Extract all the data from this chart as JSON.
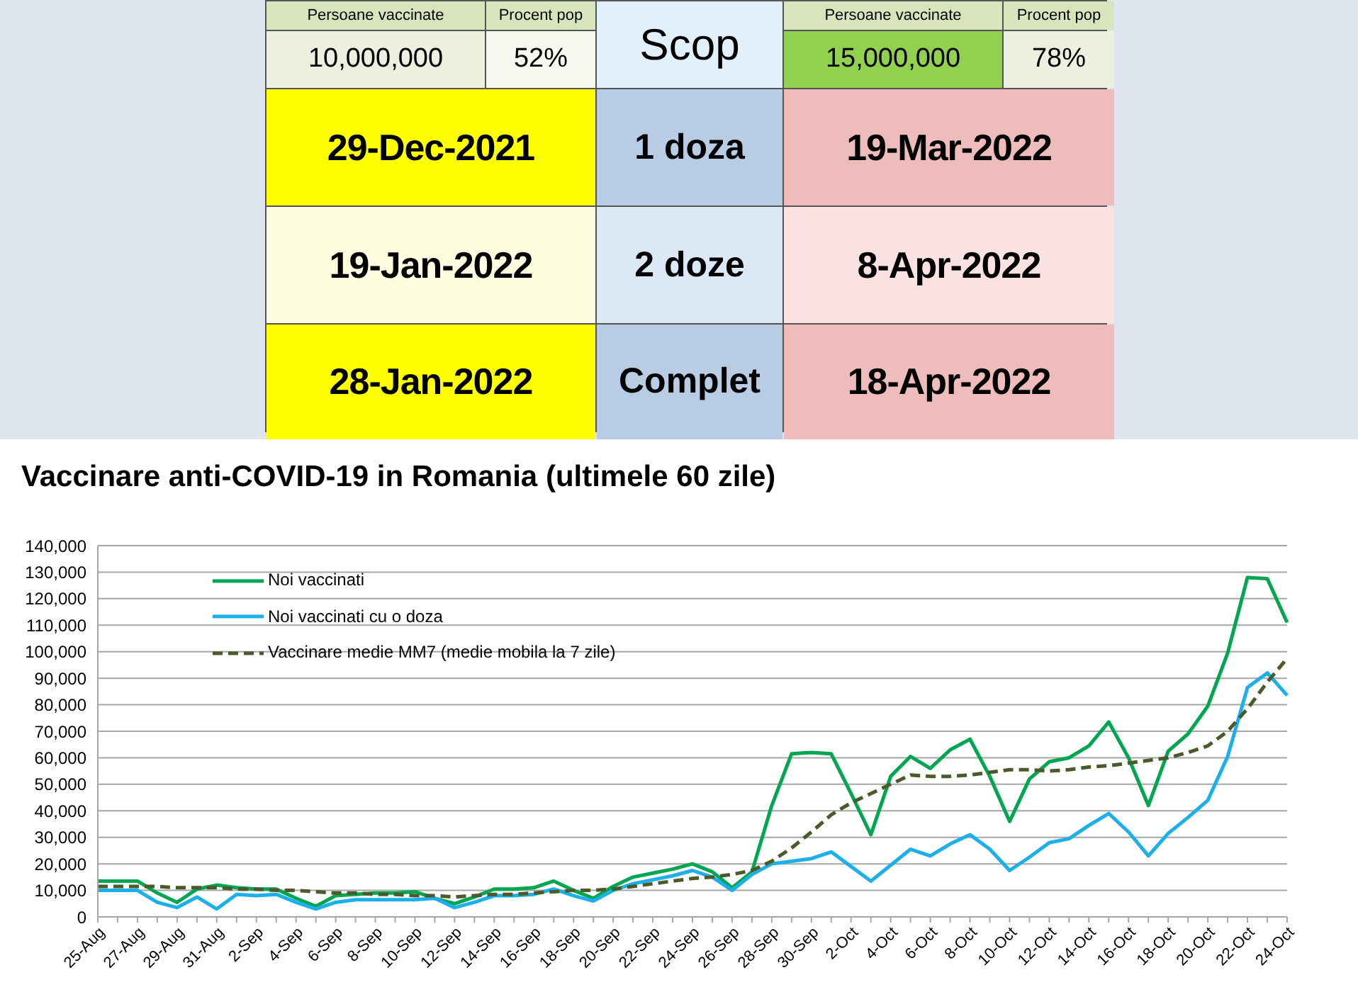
{
  "chart_data": [
    {
      "type": "other",
      "annotations": [
        "Persoane vaccinate",
        "Procent pop",
        "Scop",
        "Persoane vaccinate",
        "Procent pop",
        "10,000,000",
        "52%",
        "15,000,000",
        "78%",
        "29-Dec-2021",
        "1 doza",
        "19-Mar-2022",
        "19-Jan-2022",
        "2 doze",
        "8-Apr-2022",
        "28-Jan-2022",
        "Complet",
        "18-Apr-2022"
      ],
      "colors": [
        "#d8e4bc",
        "#d8e4bc",
        "#e1f0fa",
        "#d8e4bc",
        "#d8e4bc",
        "#ebf1de",
        "#f6f9ef",
        "#92d050",
        "#ebf1de",
        "#ffff00",
        "#b8cce4",
        "#efbcbc",
        "#fffde0",
        "#dce8f6",
        "#fbe2e2",
        "#ffff00",
        "#b8cce4",
        "#efbcbc"
      ]
    },
    {
      "type": "line",
      "title": "Vaccinare anti-COVID-19 in Romania (ultimele 60 zile)",
      "categories": [
        "25-Aug",
        null,
        "27-Aug",
        null,
        "29-Aug",
        null,
        "31-Aug",
        null,
        "2-Sep",
        null,
        "4-Sep",
        null,
        "6-Sep",
        null,
        "8-Sep",
        null,
        "10-Sep",
        null,
        "12-Sep",
        null,
        "14-Sep",
        null,
        "16-Sep",
        null,
        "18-Sep",
        null,
        "20-Sep",
        null,
        "22-Sep",
        null,
        "24-Sep",
        null,
        "26-Sep",
        null,
        "28-Sep",
        null,
        "30-Sep",
        null,
        "2-Oct",
        null,
        "4-Oct",
        null,
        "6-Oct",
        null,
        "8-Oct",
        null,
        "10-Oct",
        null,
        "12-Oct",
        null,
        "14-Oct",
        null,
        "16-Oct",
        null,
        "18-Oct",
        null,
        "20-Oct",
        null,
        "22-Oct",
        null,
        "24-Oct"
      ],
      "series": [
        {
          "name": "Noi vaccinati",
          "color": "#00a650",
          "line_style": "solid",
          "values": [
            13500,
            13500,
            13500,
            9000,
            5500,
            10500,
            12000,
            11000,
            10500,
            10500,
            7000,
            4000,
            8000,
            8500,
            9000,
            9000,
            9500,
            7000,
            5000,
            7500,
            10500,
            10500,
            11000,
            13500,
            10000,
            7000,
            11500,
            15000,
            16500,
            18000,
            20000,
            17000,
            11000,
            17000,
            42000,
            61500,
            62000,
            61500,
            46500,
            31000,
            53000,
            60500,
            56000,
            63000,
            67000,
            53000,
            36000,
            52000,
            58500,
            60000,
            64500,
            73500,
            60000,
            42000,
            62500,
            69000,
            79500,
            99500,
            128000,
            127500,
            111000
          ]
        },
        {
          "name": "Noi vaccinati cu o doza",
          "color": "#1cb0ea",
          "line_style": "solid",
          "values": [
            10000,
            10000,
            10000,
            5500,
            3500,
            7500,
            3000,
            8500,
            8000,
            8500,
            5500,
            3000,
            5500,
            6500,
            6500,
            6500,
            6500,
            7000,
            3500,
            5500,
            8000,
            8000,
            8500,
            10500,
            8000,
            6000,
            10000,
            12500,
            14000,
            15500,
            17500,
            15000,
            10000,
            16000,
            20000,
            21000,
            22000,
            24500,
            19000,
            13500,
            19500,
            25500,
            23000,
            27500,
            31000,
            25500,
            17500,
            22500,
            28000,
            29500,
            34500,
            39000,
            32000,
            23000,
            31500,
            37500,
            44000,
            60500,
            86500,
            92000,
            83500
          ]
        },
        {
          "name": "Vaccinare medie MM7 (medie mobila la 7 zile)",
          "color": "#4a5a2a",
          "line_style": "dashed",
          "values": [
            11500,
            11500,
            11500,
            11500,
            11000,
            11000,
            11000,
            10500,
            10500,
            10000,
            10000,
            9500,
            9000,
            9000,
            8500,
            8500,
            8000,
            8000,
            7500,
            8000,
            8500,
            8500,
            9000,
            9500,
            10000,
            10000,
            10500,
            11500,
            12500,
            13500,
            14500,
            15000,
            16000,
            17500,
            21000,
            26000,
            32000,
            38500,
            43000,
            46500,
            50000,
            53500,
            53000,
            53000,
            53500,
            54500,
            55500,
            55500,
            55000,
            55500,
            56500,
            57000,
            58000,
            59000,
            60000,
            62000,
            64500,
            70000,
            78500,
            88500,
            97500
          ]
        }
      ],
      "ylim": [
        0,
        140000
      ],
      "yticks": [
        0,
        {
          "value": 10000,
          "label": "10,000"
        },
        {
          "value": 20000,
          "label": "20,000"
        },
        {
          "value": 30000,
          "label": "30,000"
        },
        {
          "value": 40000,
          "label": "40,000"
        },
        {
          "value": 50000,
          "label": "50,000"
        },
        {
          "value": 60000,
          "label": "60,000"
        },
        {
          "value": 70000,
          "label": "70,000"
        },
        {
          "value": 80000,
          "label": "80,000"
        },
        {
          "value": 90000,
          "label": "90,000"
        },
        {
          "value": 100000,
          "label": "100,000"
        },
        {
          "value": 110000,
          "label": "110,000"
        },
        {
          "value": 120000,
          "label": "120,000"
        },
        {
          "value": 130000,
          "label": "130,000"
        },
        {
          "value": 140000,
          "label": "140,000"
        }
      ],
      "grid": "y",
      "legend": "top left"
    }
  ]
}
